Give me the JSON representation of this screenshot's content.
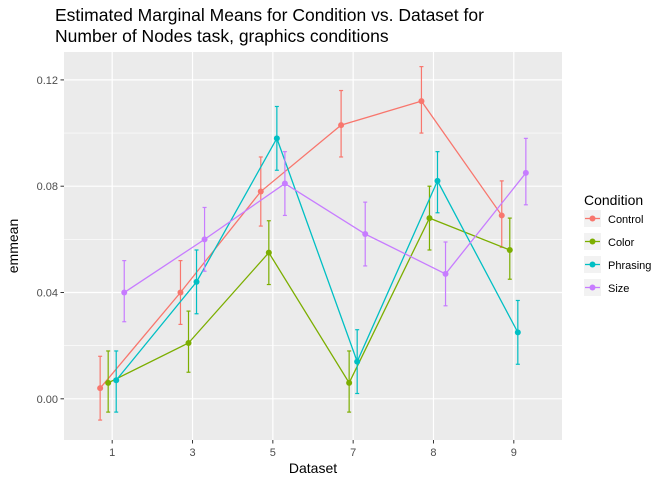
{
  "chart_data": {
    "type": "line",
    "title_lines": [
      "Estimated Marginal Means for Condition vs. Dataset for",
      "Number of Nodes task, graphics conditions"
    ],
    "xlabel": "Dataset",
    "ylabel": "emmean",
    "categories": [
      "1",
      "3",
      "5",
      "7",
      "8",
      "9"
    ],
    "ylim": [
      -0.0155,
      0.1305
    ],
    "yticks": [
      0.0,
      0.04,
      0.08,
      0.12
    ],
    "ytick_labels": [
      "0.00",
      "0.04",
      "0.08",
      "0.12"
    ],
    "grid": true,
    "legend": {
      "title": "Condition",
      "position": "right"
    },
    "series": [
      {
        "name": "Control",
        "color": "#F8766D",
        "dodge": -0.15,
        "values": [
          0.004,
          0.04,
          0.078,
          0.103,
          0.112,
          0.069
        ],
        "lower": [
          -0.008,
          0.028,
          0.065,
          0.091,
          0.1,
          0.057
        ],
        "upper": [
          0.016,
          0.052,
          0.091,
          0.116,
          0.125,
          0.082
        ]
      },
      {
        "name": "Color",
        "color": "#7CAE00",
        "dodge": -0.05,
        "values": [
          0.006,
          0.021,
          0.055,
          0.006,
          0.068,
          0.056
        ],
        "lower": [
          -0.005,
          0.01,
          0.043,
          -0.005,
          0.056,
          0.045
        ],
        "upper": [
          0.018,
          0.033,
          0.067,
          0.018,
          0.08,
          0.068
        ]
      },
      {
        "name": "Phrasing",
        "color": "#00BFC4",
        "dodge": 0.05,
        "values": [
          0.007,
          0.044,
          0.098,
          0.014,
          0.082,
          0.025
        ],
        "lower": [
          -0.005,
          0.032,
          0.086,
          0.002,
          0.07,
          0.013
        ],
        "upper": [
          0.018,
          0.056,
          0.11,
          0.026,
          0.093,
          0.037
        ]
      },
      {
        "name": "Size",
        "color": "#C77CFF",
        "dodge": 0.15,
        "values": [
          0.04,
          0.06,
          0.081,
          0.062,
          0.047,
          0.085
        ],
        "lower": [
          0.029,
          0.048,
          0.069,
          0.05,
          0.035,
          0.073
        ],
        "upper": [
          0.052,
          0.072,
          0.093,
          0.074,
          0.059,
          0.098
        ]
      }
    ]
  }
}
